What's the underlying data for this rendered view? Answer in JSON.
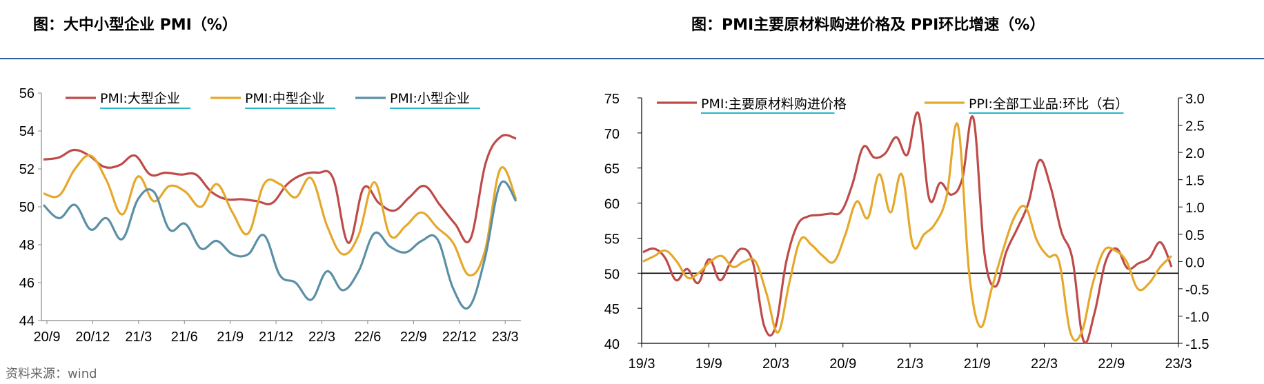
{
  "titles": {
    "left": "图：大中小型企业 PMI（%）",
    "right": "图：PMI主要原材料购进价格及 PPI环比增速（%）"
  },
  "source": "资料来源：wind",
  "chart_data": [
    {
      "type": "line",
      "title": "",
      "x_labels": [
        "20/9",
        "20/12",
        "21/3",
        "21/6",
        "21/9",
        "21/12",
        "22/3",
        "22/6",
        "22/9",
        "22/12",
        "23/3"
      ],
      "ylim": [
        44,
        56
      ],
      "yticks": [
        44,
        46,
        48,
        50,
        52,
        54,
        56
      ],
      "legend_position": "top",
      "series": [
        {
          "name": "PMI:大型企业",
          "color": "#be4b48",
          "values": [
            52.5,
            52.6,
            53.0,
            52.7,
            52.1,
            52.2,
            52.7,
            51.7,
            51.8,
            51.7,
            51.7,
            50.8,
            50.4,
            50.4,
            50.3,
            50.2,
            51.2,
            51.7,
            51.8,
            51.5,
            48.1,
            51.0,
            50.2,
            49.8,
            50.5,
            51.1,
            50.1,
            49.1,
            48.3,
            52.3,
            53.7,
            53.6
          ]
        },
        {
          "name": "PMI:中型企业",
          "color": "#e5a82b",
          "values": [
            50.7,
            50.6,
            52.0,
            52.7,
            51.4,
            49.6,
            51.6,
            50.3,
            51.1,
            50.8,
            50.0,
            51.2,
            49.7,
            48.6,
            51.2,
            51.2,
            50.5,
            51.5,
            49.0,
            47.5,
            48.5,
            51.3,
            48.5,
            49.0,
            49.7,
            48.9,
            48.1,
            46.4,
            47.6,
            52.0,
            50.4
          ]
        },
        {
          "name": "PMI:小型企业",
          "color": "#5b8fa6",
          "values": [
            50.1,
            49.4,
            50.1,
            48.8,
            49.4,
            48.3,
            50.4,
            50.8,
            48.8,
            49.1,
            47.8,
            48.2,
            47.5,
            47.5,
            48.5,
            46.4,
            46.0,
            45.1,
            46.6,
            45.6,
            46.6,
            48.6,
            47.9,
            47.6,
            48.2,
            48.3,
            45.7,
            44.7,
            47.2,
            51.2,
            50.3
          ]
        }
      ]
    },
    {
      "type": "line",
      "title": "",
      "x_labels": [
        "19/3",
        "19/9",
        "20/3",
        "20/9",
        "21/3",
        "21/9",
        "22/3",
        "22/9",
        "23/3"
      ],
      "ylim_left": [
        40,
        75
      ],
      "yticks_left": [
        40,
        45,
        50,
        55,
        60,
        65,
        70,
        75
      ],
      "ylim_right": [
        -1.5,
        3.0
      ],
      "yticks_right": [
        "-1.5",
        "-1.0",
        "-0.5",
        "0.0",
        "0.5",
        "1.0",
        "1.5",
        "2.0",
        "2.5",
        "3.0"
      ],
      "legend_position": "top",
      "series": [
        {
          "name": "PMI:主要原材料购进价格",
          "color": "#be4b48",
          "axis": "left",
          "values": [
            53.0,
            53.5,
            52.2,
            49.0,
            50.6,
            48.6,
            52.0,
            49.0,
            51.7,
            53.5,
            51.4,
            42.5,
            42.2,
            51.6,
            56.8,
            58.1,
            58.3,
            58.5,
            58.8,
            62.6,
            68.0,
            66.5,
            67.1,
            69.4,
            66.9,
            72.8,
            60.6,
            62.9,
            61.2,
            63.5,
            72.1,
            52.9,
            48.1,
            53.1,
            56.4,
            60.0,
            66.1,
            62.4,
            55.9,
            52.0,
            40.4,
            44.3,
            51.6,
            53.5,
            50.7,
            51.4,
            52.2,
            54.4,
            50.9
          ]
        },
        {
          "name": "PPI:全部工业品:环比（右）",
          "color": "#e5a82b",
          "axis": "right",
          "values": [
            0.0,
            0.1,
            0.2,
            0.0,
            -0.3,
            -0.2,
            0.0,
            0.1,
            -0.1,
            0.0,
            0.0,
            -0.6,
            -1.3,
            -0.4,
            0.4,
            0.3,
            0.1,
            0.0,
            0.5,
            1.1,
            0.8,
            1.6,
            0.9,
            1.6,
            0.3,
            0.5,
            0.7,
            1.2,
            2.5,
            -0.2,
            -1.2,
            -0.5,
            0.2,
            0.8,
            1.0,
            0.4,
            0.1,
            0.0,
            -1.3,
            -1.3,
            -0.4,
            0.2,
            0.2,
            0.0,
            -0.5,
            -0.4,
            -0.1,
            0.1
          ]
        }
      ]
    }
  ]
}
